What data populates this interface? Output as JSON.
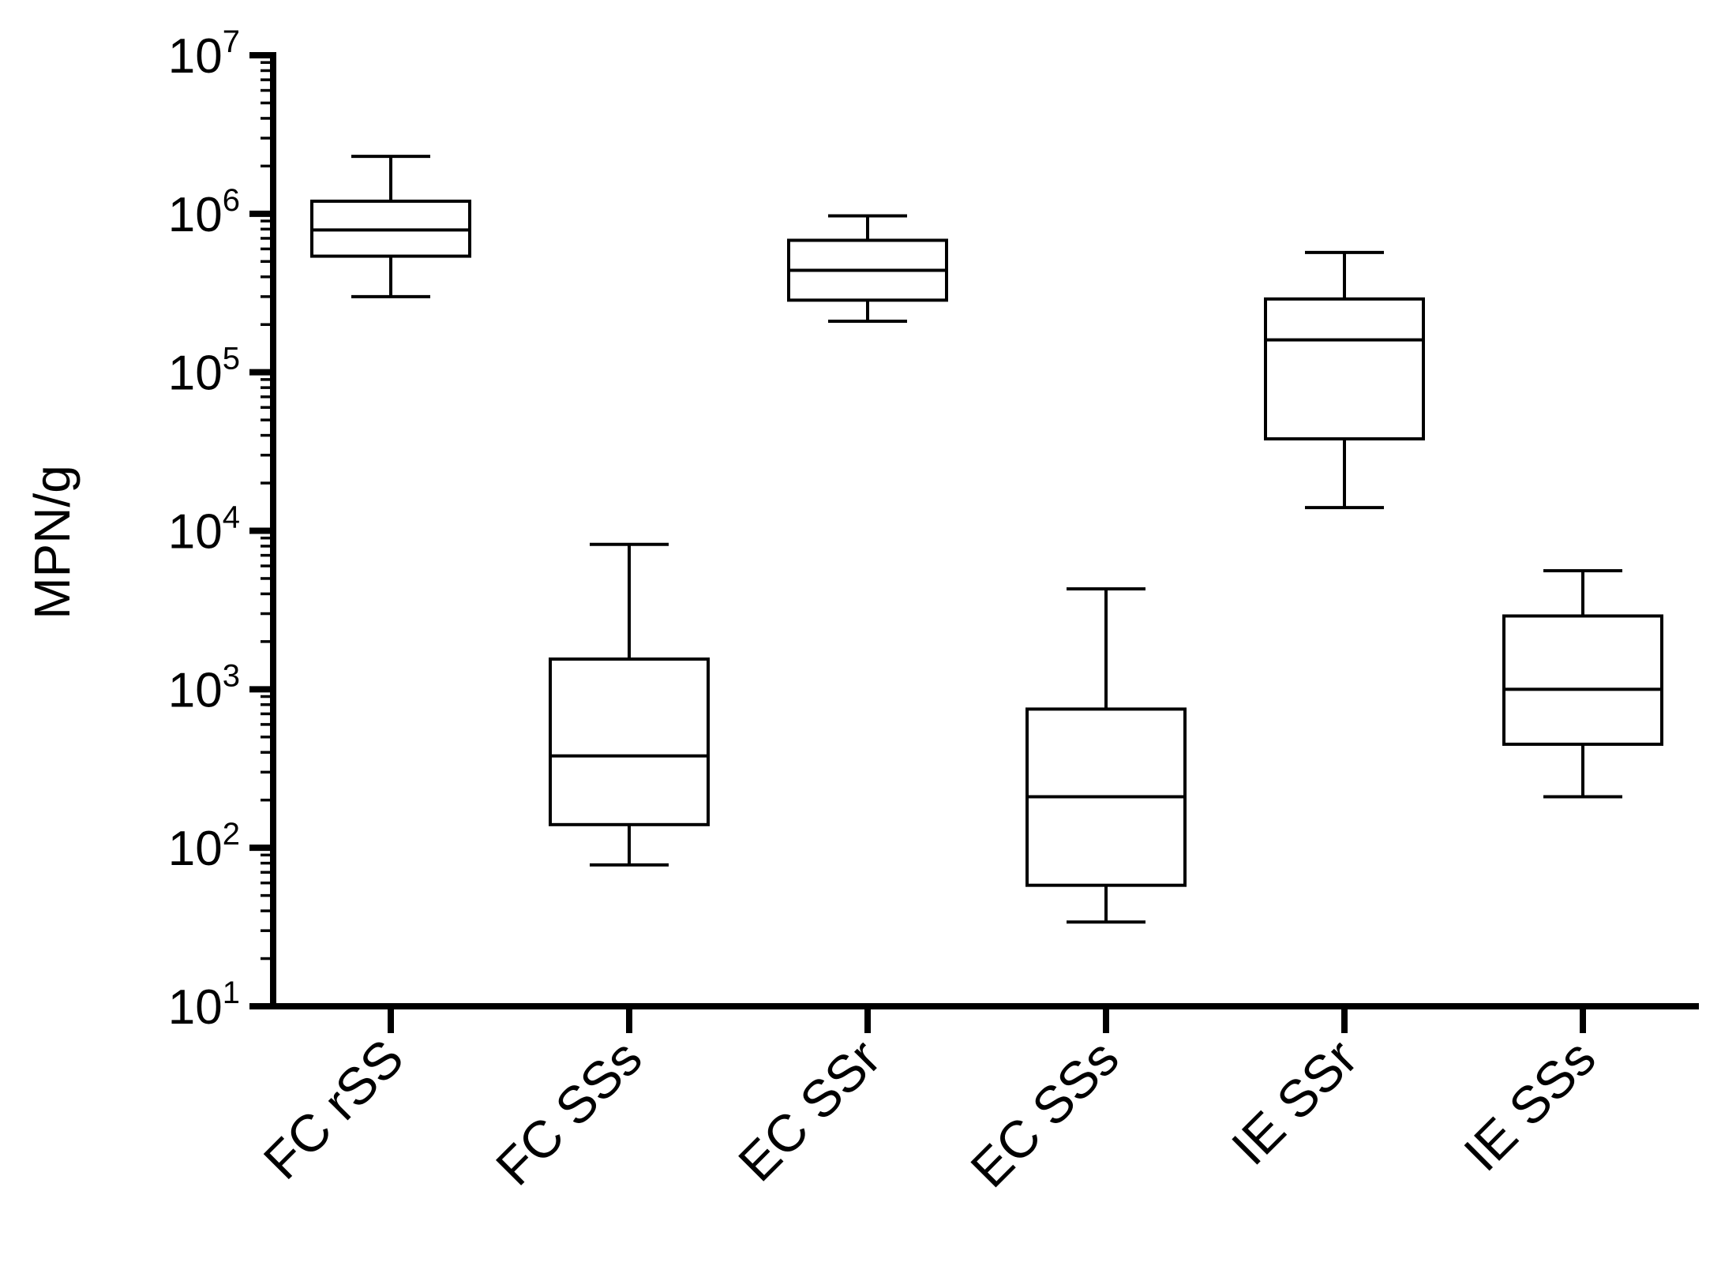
{
  "chart_data": {
    "type": "box",
    "title": "",
    "xlabel": "",
    "ylabel": "MPN/g",
    "yscale": "log",
    "ylim": [
      10,
      10000000
    ],
    "ytick_labels": [
      {
        "base": "10",
        "exp": "1"
      },
      {
        "base": "10",
        "exp": "2"
      },
      {
        "base": "10",
        "exp": "3"
      },
      {
        "base": "10",
        "exp": "4"
      },
      {
        "base": "10",
        "exp": "5"
      },
      {
        "base": "10",
        "exp": "6"
      },
      {
        "base": "10",
        "exp": "7"
      }
    ],
    "categories": [
      "FC rSS",
      "FC SSs",
      "EC SSr",
      "EC SSs",
      "IE SSr",
      "IE SSs"
    ],
    "boxes": [
      {
        "min": 300000,
        "q1": 540000,
        "median": 790000,
        "q3": 1200000,
        "max": 2300000
      },
      {
        "min": 78,
        "q1": 140,
        "median": 380,
        "q3": 1550,
        "max": 8200
      },
      {
        "min": 210000,
        "q1": 285000,
        "median": 440000,
        "q3": 680000,
        "max": 970000
      },
      {
        "min": 34,
        "q1": 58,
        "median": 210,
        "q3": 750,
        "max": 4300
      },
      {
        "min": 14000,
        "q1": 38000,
        "median": 160000,
        "q3": 290000,
        "max": 570000
      },
      {
        "min": 210,
        "q1": 450,
        "median": 1000,
        "q3": 2900,
        "max": 5600
      }
    ],
    "grid": false,
    "legend": "none"
  }
}
